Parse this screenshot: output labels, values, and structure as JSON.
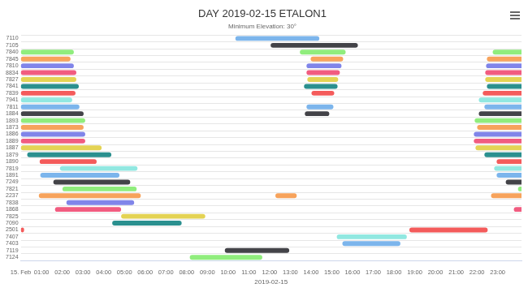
{
  "chart_data": {
    "type": "bar",
    "orientation": "horizontal",
    "title": "DAY 2019-02-15 ETALON1",
    "subtitle": "Minimum Elevation: 30°",
    "xlabel": "2019-02-15",
    "categories": [
      "7110",
      "7105",
      "7840",
      "7845",
      "7810",
      "8834",
      "7827",
      "7841",
      "7839",
      "7941",
      "7811",
      "1884",
      "1893",
      "1873",
      "1886",
      "1889",
      "1887",
      "1879",
      "1890",
      "7819",
      "1891",
      "7249",
      "7821",
      "2237",
      "7838",
      "1868",
      "7825",
      "7090",
      "2501",
      "7407",
      "7403",
      "7119",
      "7124"
    ],
    "values": [
      [
        [
          10.35,
          14.4
        ]
      ],
      [
        [
          12.05,
          16.26
        ]
      ],
      [
        [
          0,
          2.56
        ],
        [
          13.46,
          15.67
        ],
        [
          22.76,
          24.5
        ]
      ],
      [
        [
          0,
          2.4
        ],
        [
          13.98,
          15.55
        ],
        [
          22.48,
          24.5
        ]
      ],
      [
        [
          0,
          2.56
        ],
        [
          13.78,
          15.47
        ],
        [
          22.44,
          24.5
        ]
      ],
      [
        [
          0,
          2.68
        ],
        [
          13.78,
          15.39
        ],
        [
          22.4,
          24.5
        ]
      ],
      [
        [
          0,
          2.68
        ],
        [
          13.82,
          15.31
        ],
        [
          22.4,
          24.5
        ]
      ],
      [
        [
          0,
          2.8
        ],
        [
          13.66,
          15.28
        ],
        [
          22.48,
          24.5
        ]
      ],
      [
        [
          0,
          2.64
        ],
        [
          14.02,
          15.12
        ],
        [
          22.28,
          24.5
        ]
      ],
      [
        [
          0,
          2.48
        ],
        [
          22.09,
          24.5
        ]
      ],
      [
        [
          0,
          2.83
        ],
        [
          13.78,
          15.08
        ],
        [
          22.36,
          24.5
        ]
      ],
      [
        [
          0,
          3.03
        ],
        [
          13.7,
          14.88
        ],
        [
          22.09,
          24.5
        ]
      ],
      [
        [
          0,
          3.11
        ],
        [
          21.89,
          24.5
        ]
      ],
      [
        [
          0,
          3.03
        ],
        [
          22.01,
          24.5
        ]
      ],
      [
        [
          0,
          3.11
        ],
        [
          21.85,
          24.5
        ]
      ],
      [
        [
          0,
          3.11
        ],
        [
          21.85,
          24.5
        ]
      ],
      [
        [
          0,
          3.9
        ],
        [
          21.93,
          24.5
        ]
      ],
      [
        [
          0.31,
          4.37
        ],
        [
          22.36,
          24.5
        ]
      ],
      [
        [
          0.91,
          3.66
        ],
        [
          22.95,
          24.5
        ]
      ],
      [
        [
          1.89,
          5.63
        ],
        [
          22.83,
          24.5
        ]
      ],
      [
        [
          0.94,
          4.76
        ],
        [
          22.95,
          24.5
        ]
      ],
      [
        [
          1.57,
          5.28
        ],
        [
          23.39,
          24.5
        ]
      ],
      [
        [
          2.01,
          5.59
        ],
        [
          23.98,
          24.5
        ]
      ],
      [
        [
          0.87,
          5.79
        ],
        [
          12.28,
          13.31
        ],
        [
          22.68,
          24.5
        ]
      ],
      [
        [
          2.2,
          5.47
        ]
      ],
      [
        [
          1.65,
          4.84
        ],
        [
          23.78,
          24.5
        ]
      ],
      [
        [
          4.84,
          8.9
        ]
      ],
      [
        [
          4.41,
          7.76
        ]
      ],
      [
        [
          0,
          0.16
        ],
        [
          18.74,
          22.52
        ]
      ],
      [
        [
          15.24,
          18.62
        ]
      ],
      [
        [
          15.51,
          18.31
        ]
      ],
      [
        [
          9.84,
          12.95
        ]
      ],
      [
        [
          8.15,
          11.65
        ]
      ]
    ],
    "colors": [
      "#7cb5ec",
      "#434348",
      "#90ed7d",
      "#f7a35c",
      "#8085e9",
      "#f15c80",
      "#e4d354",
      "#2b908f",
      "#f45b5b",
      "#91e8e1",
      "#7cb5ec",
      "#434348",
      "#90ed7d",
      "#f7a35c",
      "#8085e9",
      "#f15c80",
      "#e4d354",
      "#2b908f",
      "#f45b5b",
      "#91e8e1",
      "#7cb5ec",
      "#434348",
      "#90ed7d",
      "#f7a35c",
      "#8085e9",
      "#f15c80",
      "#e4d354",
      "#2b908f",
      "#f45b5b",
      "#91e8e1",
      "#7cb5ec",
      "#434348",
      "#90ed7d"
    ],
    "xlim": [
      0,
      24.15
    ],
    "xticks": [
      {
        "value": 0,
        "label": "15. Feb"
      },
      {
        "value": 1,
        "label": "01:00"
      },
      {
        "value": 2,
        "label": "02:00"
      },
      {
        "value": 3,
        "label": "03:00"
      },
      {
        "value": 4,
        "label": "04:00"
      },
      {
        "value": 5,
        "label": "05:00"
      },
      {
        "value": 6,
        "label": "06:00"
      },
      {
        "value": 7,
        "label": "07:00"
      },
      {
        "value": 8,
        "label": "08:00"
      },
      {
        "value": 9,
        "label": "09:00"
      },
      {
        "value": 10,
        "label": "10:00"
      },
      {
        "value": 11,
        "label": "11:00"
      },
      {
        "value": 12,
        "label": "12:00"
      },
      {
        "value": 13,
        "label": "13:00"
      },
      {
        "value": 14,
        "label": "14:00"
      },
      {
        "value": 15,
        "label": "15:00"
      },
      {
        "value": 16,
        "label": "16:00"
      },
      {
        "value": 17,
        "label": "17:00"
      },
      {
        "value": 18,
        "label": "18:00"
      },
      {
        "value": 19,
        "label": "19:00"
      },
      {
        "value": 20,
        "label": "20:00"
      },
      {
        "value": 21,
        "label": "21:00"
      },
      {
        "value": 22,
        "label": "22:00"
      },
      {
        "value": 23,
        "label": "23:00"
      }
    ],
    "grid": true
  }
}
